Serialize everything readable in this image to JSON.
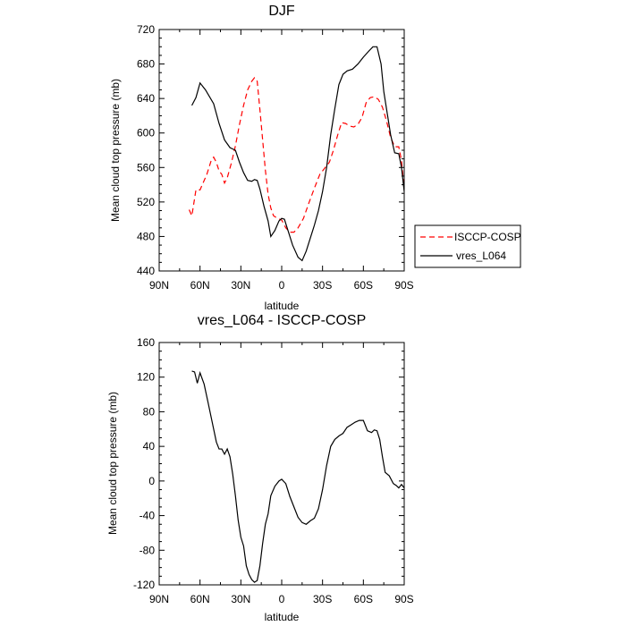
{
  "chart_data": [
    {
      "type": "line",
      "title": "DJF",
      "xlabel": "latitude",
      "ylabel": "Mean cloud top pressure (mb)",
      "xlim": [
        90,
        -90
      ],
      "ylim": [
        440,
        720
      ],
      "x_ticks": [
        90,
        60,
        30,
        0,
        -30,
        -60,
        -90
      ],
      "x_tick_labels": [
        "90N",
        "60N",
        "30N",
        "0",
        "30S",
        "60S",
        "90S"
      ],
      "y_ticks": [
        440,
        480,
        520,
        560,
        600,
        640,
        680,
        720
      ],
      "y_tick_labels": [
        "440",
        "480",
        "520",
        "560",
        "600",
        "640",
        "680",
        "720"
      ],
      "legend": {
        "position": "right",
        "entries": [
          "ISCCP-COSP",
          "vres_L064"
        ]
      },
      "series": [
        {
          "name": "ISCCP-COSP",
          "color": "#ff0000",
          "dash": "dashed",
          "points": [
            [
              68,
              511
            ],
            [
              66,
              504
            ],
            [
              63,
              534
            ],
            [
              60,
              534
            ],
            [
              55,
              552
            ],
            [
              52,
              567
            ],
            [
              50,
              572
            ],
            [
              48,
              566
            ],
            [
              46,
              556
            ],
            [
              44,
              552
            ],
            [
              42,
              542
            ],
            [
              40,
              548
            ],
            [
              37,
              565
            ],
            [
              34,
              585
            ],
            [
              31,
              610
            ],
            [
              28,
              632
            ],
            [
              25,
              650
            ],
            [
              22,
              660
            ],
            [
              20,
              664
            ],
            [
              18,
              660
            ],
            [
              16,
              627
            ],
            [
              14,
              592
            ],
            [
              12,
              557
            ],
            [
              10,
              529
            ],
            [
              8,
              513
            ],
            [
              6,
              504
            ],
            [
              3,
              501
            ],
            [
              0,
              499
            ],
            [
              -3,
              490
            ],
            [
              -6,
              485
            ],
            [
              -9,
              485
            ],
            [
              -12,
              490
            ],
            [
              -16,
              501
            ],
            [
              -20,
              519
            ],
            [
              -24,
              536
            ],
            [
              -28,
              552
            ],
            [
              -32,
              560
            ],
            [
              -35,
              566
            ],
            [
              -38,
              580
            ],
            [
              -41,
              597
            ],
            [
              -44,
              612
            ],
            [
              -47,
              611
            ],
            [
              -50,
              608
            ],
            [
              -53,
              607
            ],
            [
              -56,
              610
            ],
            [
              -59,
              618
            ],
            [
              -62,
              635
            ],
            [
              -65,
              641
            ],
            [
              -68,
              642
            ],
            [
              -71,
              639
            ],
            [
              -74,
              630
            ],
            [
              -77,
              614
            ],
            [
              -80,
              595
            ],
            [
              -83,
              584
            ],
            [
              -86,
              584
            ],
            [
              -88,
              568
            ],
            [
              -90,
              534
            ],
            [
              -91,
              526
            ]
          ]
        },
        {
          "name": "vres_L064",
          "color": "#000000",
          "dash": "solid",
          "points": [
            [
              66,
              632
            ],
            [
              63,
              641
            ],
            [
              60,
              658
            ],
            [
              56,
              650
            ],
            [
              50,
              634
            ],
            [
              46,
              611
            ],
            [
              42,
              592
            ],
            [
              38,
              583
            ],
            [
              34,
              580
            ],
            [
              31,
              566
            ],
            [
              28,
              554
            ],
            [
              25,
              545
            ],
            [
              22,
              544
            ],
            [
              20,
              546
            ],
            [
              18,
              545
            ],
            [
              16,
              535
            ],
            [
              13,
              515
            ],
            [
              10,
              498
            ],
            [
              8,
              480
            ],
            [
              5,
              487
            ],
            [
              2,
              498
            ],
            [
              0,
              501
            ],
            [
              -2,
              500
            ],
            [
              -5,
              485
            ],
            [
              -8,
              470
            ],
            [
              -12,
              456
            ],
            [
              -15,
              452
            ],
            [
              -18,
              463
            ],
            [
              -21,
              478
            ],
            [
              -24,
              493
            ],
            [
              -27,
              510
            ],
            [
              -30,
              532
            ],
            [
              -33,
              560
            ],
            [
              -36,
              598
            ],
            [
              -39,
              628
            ],
            [
              -42,
              656
            ],
            [
              -45,
              668
            ],
            [
              -48,
              672
            ],
            [
              -52,
              674
            ],
            [
              -56,
              680
            ],
            [
              -60,
              688
            ],
            [
              -64,
              695
            ],
            [
              -67,
              700
            ],
            [
              -70,
              700
            ],
            [
              -73,
              680
            ],
            [
              -75,
              648
            ],
            [
              -77,
              628
            ],
            [
              -80,
              598
            ],
            [
              -83,
              577
            ],
            [
              -86,
              576
            ],
            [
              -88,
              560
            ],
            [
              -90,
              532
            ],
            [
              -91,
              517
            ]
          ]
        }
      ]
    },
    {
      "type": "line",
      "title": "vres_L064 - ISCCP-COSP",
      "xlabel": "latitude",
      "ylabel": "Mean cloud top pressure (mb)",
      "xlim": [
        90,
        -90
      ],
      "ylim": [
        -120,
        160
      ],
      "x_ticks": [
        90,
        60,
        30,
        0,
        -30,
        -60,
        -90
      ],
      "x_tick_labels": [
        "90N",
        "60N",
        "30N",
        "0",
        "30S",
        "60S",
        "90S"
      ],
      "y_ticks": [
        -120,
        -80,
        -40,
        0,
        40,
        80,
        120,
        160
      ],
      "y_tick_labels": [
        "-120",
        "-80",
        "-40",
        "0",
        "40",
        "80",
        "120",
        "160"
      ],
      "series": [
        {
          "name": "vres_L064 - ISCCP-COSP",
          "color": "#000000",
          "dash": "solid",
          "points": [
            [
              66,
              127
            ],
            [
              64,
              126
            ],
            [
              62,
              113
            ],
            [
              60,
              125
            ],
            [
              57,
              112
            ],
            [
              54,
              90
            ],
            [
              50,
              60
            ],
            [
              48,
              45
            ],
            [
              46,
              37
            ],
            [
              44,
              37
            ],
            [
              42,
              31
            ],
            [
              40,
              37
            ],
            [
              38,
              28
            ],
            [
              36,
              8
            ],
            [
              34,
              -17
            ],
            [
              32,
              -45
            ],
            [
              30,
              -65
            ],
            [
              28,
              -75
            ],
            [
              26,
              -98
            ],
            [
              24,
              -108
            ],
            [
              22,
              -114
            ],
            [
              20,
              -117
            ],
            [
              18,
              -115
            ],
            [
              16,
              -98
            ],
            [
              14,
              -72
            ],
            [
              12,
              -50
            ],
            [
              10,
              -38
            ],
            [
              8,
              -17
            ],
            [
              5,
              -6
            ],
            [
              2,
              0
            ],
            [
              0,
              2
            ],
            [
              -3,
              -3
            ],
            [
              -6,
              -18
            ],
            [
              -9,
              -30
            ],
            [
              -12,
              -42
            ],
            [
              -15,
              -48
            ],
            [
              -18,
              -50
            ],
            [
              -21,
              -46
            ],
            [
              -24,
              -43
            ],
            [
              -27,
              -32
            ],
            [
              -30,
              -10
            ],
            [
              -33,
              18
            ],
            [
              -36,
              40
            ],
            [
              -39,
              48
            ],
            [
              -42,
              52
            ],
            [
              -45,
              55
            ],
            [
              -48,
              62
            ],
            [
              -51,
              65
            ],
            [
              -54,
              68
            ],
            [
              -57,
              70
            ],
            [
              -60,
              70
            ],
            [
              -63,
              58
            ],
            [
              -66,
              56
            ],
            [
              -68,
              59
            ],
            [
              -70,
              58
            ],
            [
              -72,
              48
            ],
            [
              -74,
              28
            ],
            [
              -76,
              10
            ],
            [
              -79,
              6
            ],
            [
              -82,
              -3
            ],
            [
              -84,
              -5
            ],
            [
              -86,
              -8
            ],
            [
              -88,
              -4
            ],
            [
              -90,
              -8
            ],
            [
              -91,
              -11
            ]
          ]
        }
      ]
    }
  ]
}
